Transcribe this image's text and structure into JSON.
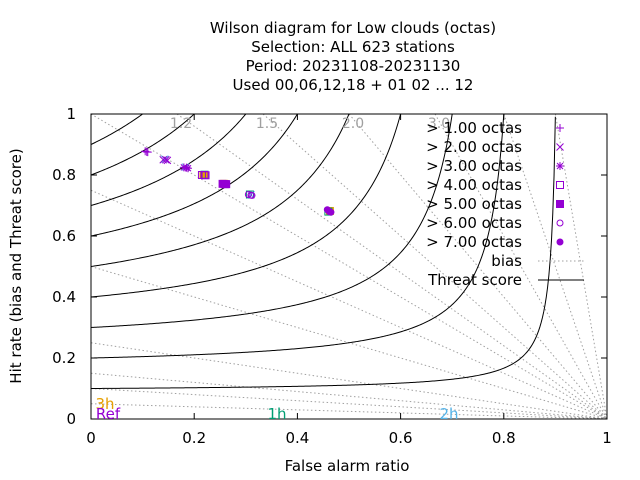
{
  "chart_data": {
    "type": "scatter",
    "title_lines": [
      "Wilson diagram  for Low clouds (octas)",
      "Selection: ALL    623 stations",
      "Period: 20231108-20231130",
      "Used  00,06,12,18 + 01 02 ... 12"
    ],
    "xlabel": "False alarm ratio",
    "ylabel": "Hit rate (bias and Threat score)",
    "xlim": [
      0,
      1
    ],
    "ylim": [
      0,
      1
    ],
    "xticks": [
      "0",
      "0.2",
      "0.4",
      "0.6",
      "0.8",
      "1"
    ],
    "yticks": [
      "0",
      "0.2",
      "0.4",
      "0.6",
      "0.8",
      "1"
    ],
    "bias_values": [
      1.2,
      1.5,
      2.0,
      3.0
    ],
    "bias_labels": [
      "1.2",
      "1.5",
      "2.0",
      "3.0"
    ],
    "threat_scores": [
      0.1,
      0.2,
      0.3,
      0.4,
      0.5,
      0.6,
      0.7,
      0.8,
      0.9
    ],
    "legend": {
      "placement": "top-right",
      "bias_label": "bias",
      "threat_label": "Threat score"
    },
    "run_labels": [
      {
        "text": "3h",
        "color": "#e69f00"
      },
      {
        "text": "Ref",
        "color": "#9400d3"
      },
      {
        "text": "1h",
        "color": "#009e73"
      },
      {
        "text": "2h",
        "color": "#56b4e9"
      }
    ],
    "series": [
      {
        "name": "> 1.00 octas",
        "symbol": "plus",
        "color": "#9400d3",
        "points": [
          [
            0.105,
            0.878
          ],
          [
            0.108,
            0.876
          ],
          [
            0.11,
            0.875
          ]
        ]
      },
      {
        "name": "> 2.00 octas",
        "symbol": "cross",
        "color": "#9400d3",
        "points": [
          [
            0.14,
            0.85
          ],
          [
            0.145,
            0.85
          ],
          [
            0.148,
            0.848
          ]
        ]
      },
      {
        "name": "> 3.00 octas",
        "symbol": "star",
        "color": "#9400d3",
        "points": [
          [
            0.18,
            0.825
          ],
          [
            0.185,
            0.824
          ],
          [
            0.188,
            0.822
          ]
        ]
      },
      {
        "name": "> 4.00 octas",
        "symbol": "box",
        "color": "#9400d3",
        "points": [
          [
            0.215,
            0.8
          ],
          [
            0.22,
            0.8
          ],
          [
            0.222,
            0.799
          ]
        ]
      },
      {
        "name": "> 5.00 octas",
        "symbol": "filled-box",
        "color": "#9400d3",
        "points": [
          [
            0.255,
            0.771
          ],
          [
            0.26,
            0.77
          ],
          [
            0.262,
            0.77
          ]
        ]
      },
      {
        "name": "> 6.00 octas",
        "symbol": "circle",
        "color": "#9400d3",
        "points": [
          [
            0.305,
            0.736
          ],
          [
            0.31,
            0.734
          ],
          [
            0.312,
            0.733
          ]
        ]
      },
      {
        "name": "> 7.00 octas",
        "symbol": "filled-circle",
        "color": "#9400d3",
        "points": [
          [
            0.458,
            0.686
          ],
          [
            0.462,
            0.68
          ],
          [
            0.465,
            0.678
          ]
        ]
      }
    ],
    "extra_points": [
      {
        "symbol": "filled-box",
        "color": "#e69f00",
        "points": [
          [
            0.258,
            0.771
          ],
          [
            0.218,
            0.8
          ],
          [
            0.463,
            0.682
          ]
        ]
      },
      {
        "symbol": "box",
        "color": "#009e73",
        "points": [
          [
            0.22,
            0.801
          ],
          [
            0.308,
            0.736
          ],
          [
            0.46,
            0.68
          ]
        ]
      },
      {
        "symbol": "cross",
        "color": "#56b4e9",
        "points": [
          [
            0.143,
            0.852
          ],
          [
            0.183,
            0.826
          ],
          [
            0.31,
            0.735
          ]
        ]
      }
    ],
    "grid": false
  }
}
